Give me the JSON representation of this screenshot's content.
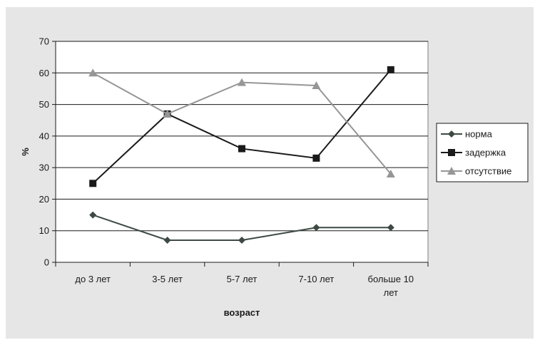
{
  "chart_data": {
    "type": "line",
    "categories": [
      [
        "до 3 лет"
      ],
      [
        "3-5 лет"
      ],
      [
        "5-7 лет"
      ],
      [
        "7-10 лет"
      ],
      [
        "больше 10",
        "лет"
      ]
    ],
    "series": [
      {
        "name": "норма",
        "values": [
          15,
          7,
          7,
          11,
          11
        ],
        "color": "#3d4a43",
        "marker": "diamond"
      },
      {
        "name": "задержка",
        "values": [
          25,
          47,
          36,
          33,
          61
        ],
        "color": "#1a1a1a",
        "marker": "square"
      },
      {
        "name": "отсутствие",
        "values": [
          60,
          47,
          57,
          56,
          28
        ],
        "color": "#969696",
        "marker": "triangle"
      }
    ],
    "xlabel": "возраст",
    "ylabel": "%",
    "ylim": [
      0,
      70
    ],
    "yticks": [
      0,
      10,
      20,
      30,
      40,
      50,
      60,
      70
    ],
    "grid": true,
    "legend": "right",
    "plot_background": "#ffffff",
    "frame_background": "#e6e6e6"
  }
}
